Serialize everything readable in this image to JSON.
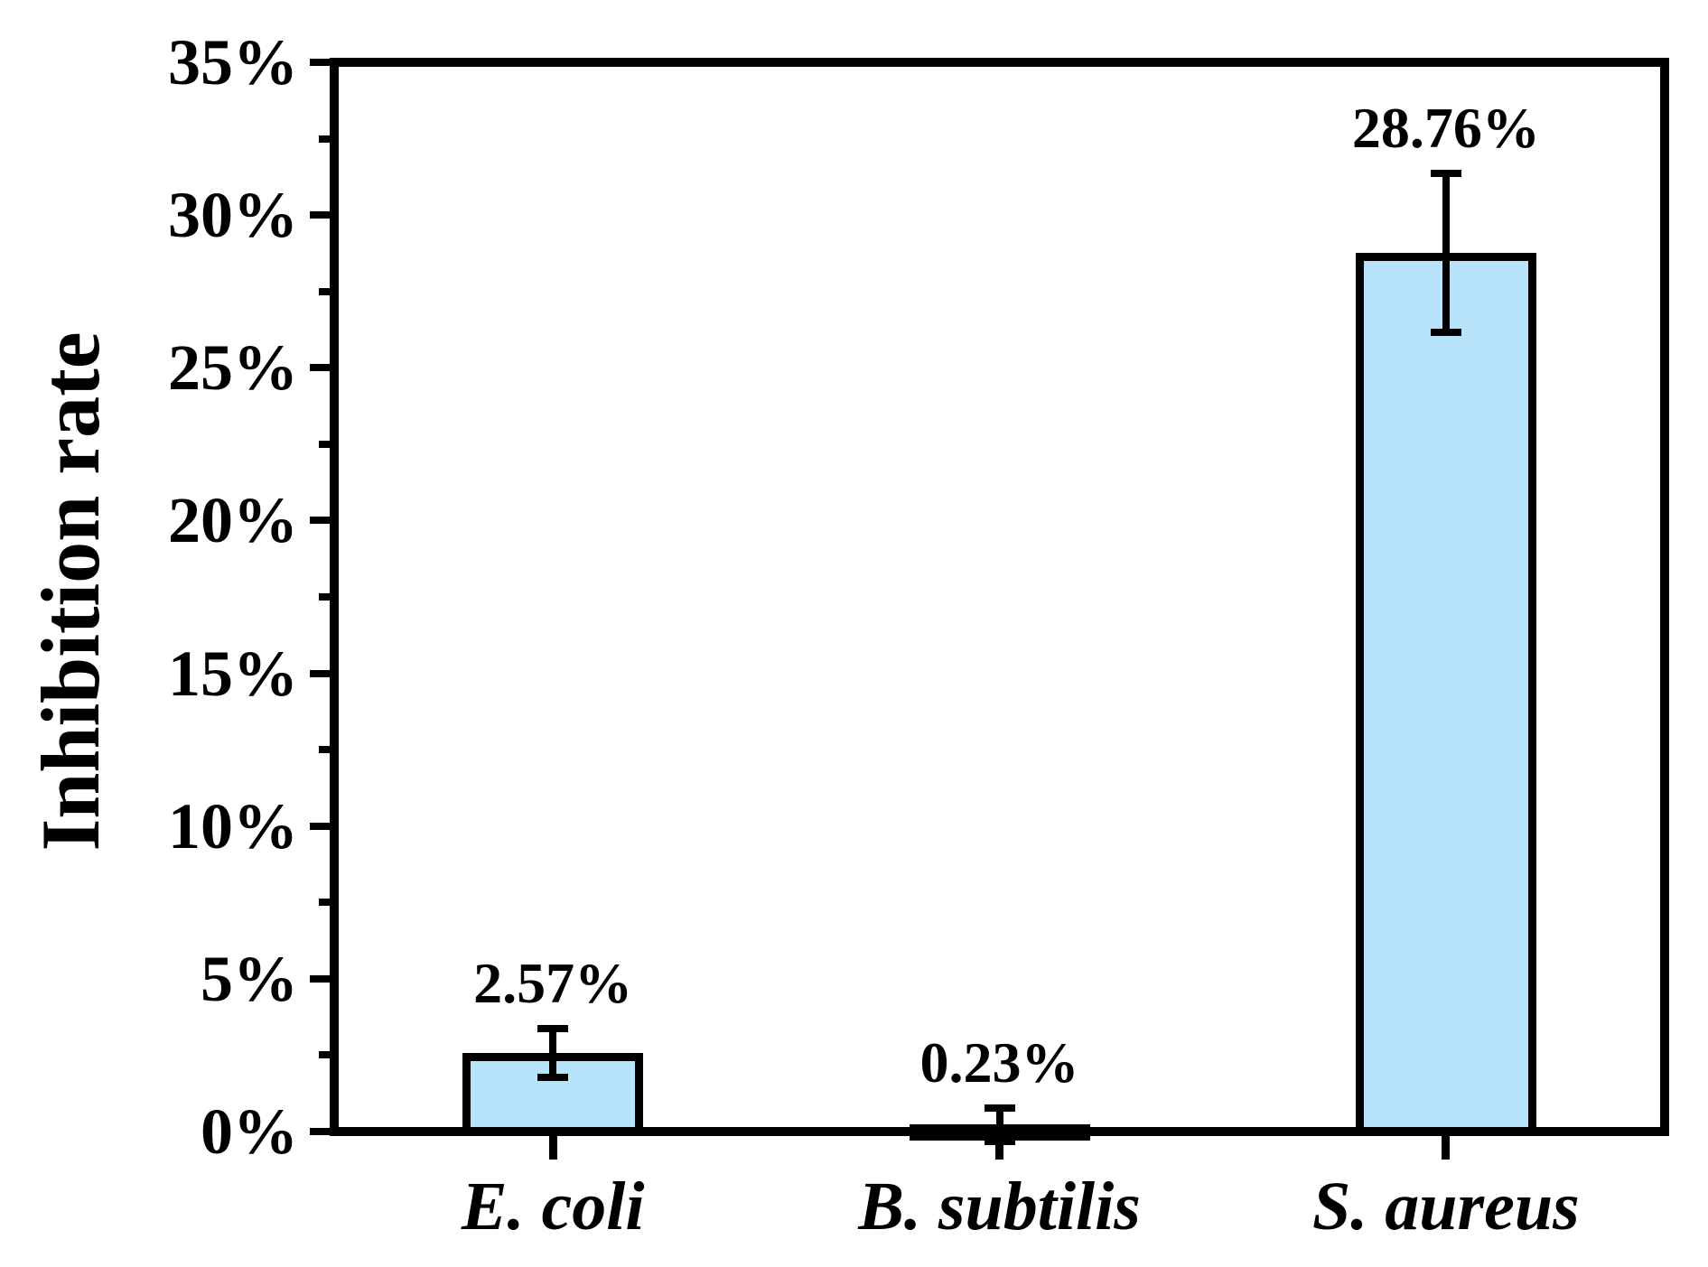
{
  "figure": {
    "background_color": "#ffffff",
    "axis_color": "#000000"
  },
  "chart_data": {
    "type": "bar",
    "title": "",
    "xlabel": "",
    "ylabel": "Inhibition rate",
    "categories": [
      "E. coli",
      "B. subtilis",
      "S. aureus"
    ],
    "values": [
      2.57,
      0.23,
      28.76
    ],
    "errors": [
      0.8,
      0.55,
      2.6
    ],
    "data_labels": [
      "2.57%",
      "0.23%",
      "28.76%"
    ],
    "ylim": [
      0,
      35
    ],
    "ytick_values": [
      0,
      5,
      10,
      15,
      20,
      25,
      30,
      35
    ],
    "ytick_labels": [
      "0%",
      "5%",
      "10%",
      "15%",
      "20%",
      "25%",
      "30%",
      "35%"
    ],
    "yminor_tick_values": [
      2.5,
      7.5,
      12.5,
      17.5,
      22.5,
      27.5,
      32.5
    ],
    "grid": false,
    "legend": null,
    "bar_fill_color": "#b6e3fa",
    "bar_border_color": "#000000"
  }
}
